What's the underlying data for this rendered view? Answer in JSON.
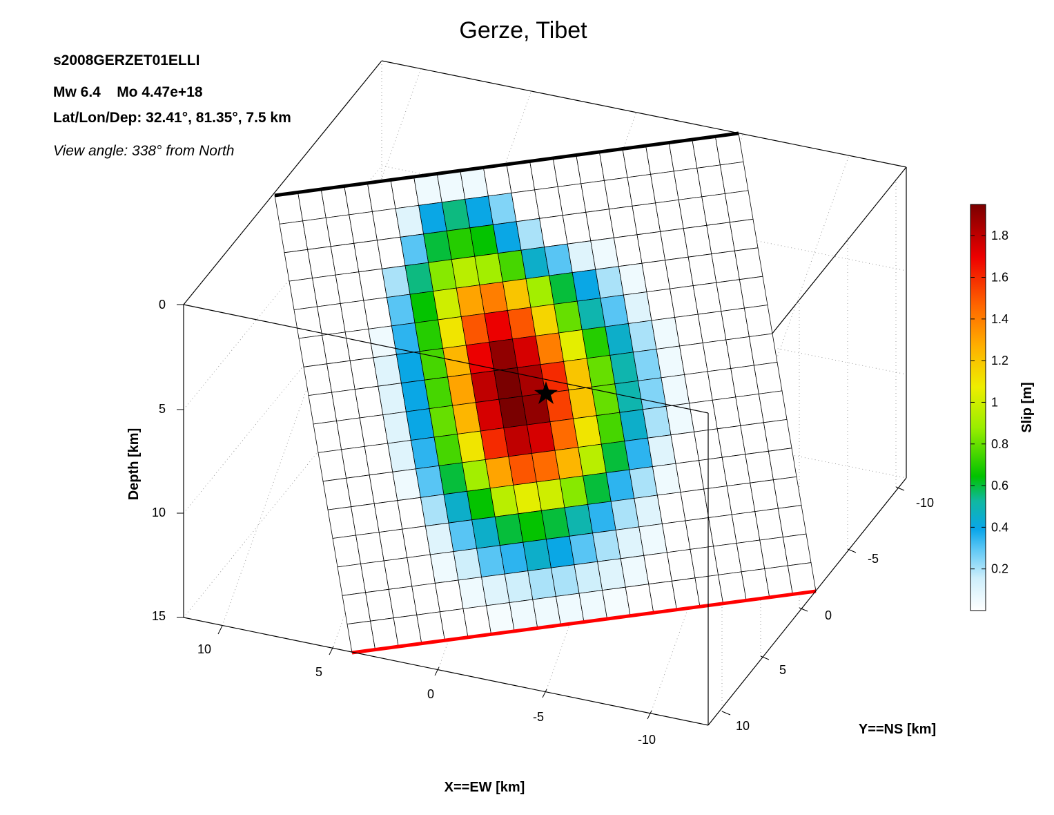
{
  "chart_data": {
    "type": "heatmap",
    "title": "Gerze, Tibet",
    "model_id": "s2008GERZET01ELLI",
    "magnitude_line": "Mw 6.4    Mo 4.47e+18",
    "location_line": "Lat/Lon/Dep: 32.41°, 81.35°, 7.5 km",
    "view_line": "View angle: 338° from North",
    "xlabel": "X==EW [km]",
    "ylabel": "Y==NS [km]",
    "zlabel": "Depth [km]",
    "colorbar_label": "Slip [m]",
    "x_ticks": [
      "10",
      "5",
      "0",
      "-5",
      "-10"
    ],
    "y_ticks": [
      "-10",
      "-5",
      "0",
      "5",
      "10"
    ],
    "depth_ticks": [
      "0",
      "5",
      "10",
      "15"
    ],
    "colorbar_ticks": [
      "0.2",
      "0.4",
      "0.6",
      "0.8",
      "1",
      "1.2",
      "1.4",
      "1.6",
      "1.8"
    ],
    "slip_range": [
      0,
      1.95
    ],
    "grid": true,
    "hypocenter_marker": "star",
    "top_edge_color": "#000000",
    "bottom_edge_color": "#ff0000",
    "slip_grid": [
      [
        0,
        0,
        0,
        0,
        0,
        0,
        0.05,
        0.05,
        0.05,
        0,
        0,
        0,
        0,
        0,
        0,
        0,
        0,
        0,
        0,
        0
      ],
      [
        0,
        0,
        0,
        0,
        0,
        0.1,
        0.4,
        0.55,
        0.4,
        0.25,
        0,
        0,
        0,
        0,
        0,
        0,
        0,
        0,
        0,
        0
      ],
      [
        0,
        0,
        0,
        0,
        0,
        0.3,
        0.6,
        0.7,
        0.65,
        0.4,
        0.2,
        0,
        0,
        0,
        0,
        0,
        0,
        0,
        0,
        0
      ],
      [
        0,
        0,
        0,
        0,
        0.2,
        0.55,
        0.85,
        0.95,
        0.9,
        0.75,
        0.45,
        0.3,
        0.1,
        0.05,
        0,
        0,
        0,
        0,
        0,
        0
      ],
      [
        0,
        0,
        0,
        0,
        0.3,
        0.65,
        1.0,
        1.3,
        1.4,
        1.2,
        0.9,
        0.6,
        0.4,
        0.2,
        0.05,
        0,
        0,
        0,
        0,
        0
      ],
      [
        0,
        0,
        0,
        0.05,
        0.35,
        0.7,
        1.1,
        1.5,
        1.7,
        1.5,
        1.15,
        0.8,
        0.5,
        0.3,
        0.1,
        0,
        0,
        0,
        0,
        0
      ],
      [
        0,
        0,
        0,
        0.1,
        0.4,
        0.75,
        1.25,
        1.7,
        1.9,
        1.75,
        1.4,
        1.05,
        0.7,
        0.45,
        0.2,
        0.05,
        0,
        0,
        0,
        0
      ],
      [
        0,
        0,
        0,
        0.1,
        0.4,
        0.75,
        1.3,
        1.8,
        1.95,
        1.85,
        1.6,
        1.2,
        0.8,
        0.5,
        0.25,
        0.05,
        0,
        0,
        0,
        0
      ],
      [
        0,
        0,
        0,
        0.1,
        0.4,
        0.8,
        1.25,
        1.75,
        1.95,
        1.9,
        1.55,
        1.2,
        0.8,
        0.5,
        0.25,
        0.05,
        0,
        0,
        0,
        0
      ],
      [
        0,
        0,
        0,
        0.1,
        0.35,
        0.75,
        1.1,
        1.6,
        1.8,
        1.75,
        1.45,
        1.1,
        0.75,
        0.45,
        0.2,
        0.05,
        0,
        0,
        0,
        0
      ],
      [
        0,
        0,
        0,
        0.05,
        0.3,
        0.6,
        0.9,
        1.3,
        1.5,
        1.45,
        1.25,
        0.95,
        0.6,
        0.35,
        0.1,
        0,
        0,
        0,
        0,
        0
      ],
      [
        0,
        0,
        0,
        0,
        0.2,
        0.45,
        0.65,
        0.95,
        1.05,
        1.0,
        0.85,
        0.6,
        0.35,
        0.2,
        0.05,
        0,
        0,
        0,
        0,
        0
      ],
      [
        0,
        0,
        0,
        0,
        0.1,
        0.3,
        0.45,
        0.6,
        0.65,
        0.6,
        0.5,
        0.35,
        0.2,
        0.1,
        0,
        0,
        0,
        0,
        0,
        0
      ],
      [
        0,
        0,
        0,
        0,
        0.05,
        0.15,
        0.3,
        0.35,
        0.45,
        0.4,
        0.3,
        0.2,
        0.1,
        0.05,
        0,
        0,
        0,
        0,
        0,
        0
      ],
      [
        0,
        0,
        0,
        0,
        0,
        0.05,
        0.1,
        0.15,
        0.2,
        0.2,
        0.15,
        0.1,
        0.05,
        0,
        0,
        0,
        0,
        0,
        0,
        0
      ],
      [
        0,
        0,
        0,
        0,
        0,
        0,
        0.03,
        0.05,
        0.05,
        0.05,
        0.05,
        0.03,
        0,
        0,
        0,
        0,
        0,
        0,
        0,
        0
      ]
    ]
  }
}
